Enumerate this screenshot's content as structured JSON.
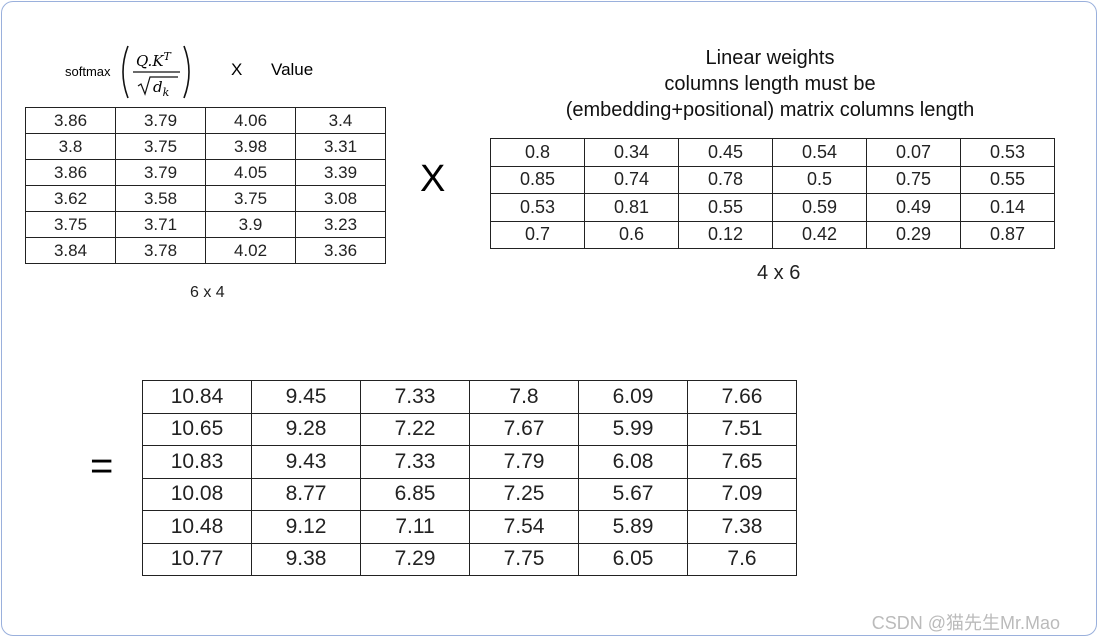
{
  "formula": {
    "function": "softmax",
    "numerator": "Q.K",
    "numerator_sup": "T",
    "denominator": "d",
    "denominator_sub": "k"
  },
  "left_operator": "X",
  "left_label": "Value",
  "left_table": {
    "rows": [
      [
        3.86,
        3.79,
        4.06,
        3.4
      ],
      [
        3.8,
        3.75,
        3.98,
        3.31
      ],
      [
        3.86,
        3.79,
        4.05,
        3.39
      ],
      [
        3.62,
        3.58,
        3.75,
        3.08
      ],
      [
        3.75,
        3.71,
        3.9,
        3.23
      ],
      [
        3.84,
        3.78,
        4.02,
        3.36
      ]
    ],
    "caption": "6 x 4"
  },
  "multiply_sign": "X",
  "right_title": [
    "Linear weights",
    "columns length must be",
    "(embedding+positional) matrix columns length"
  ],
  "right_table": {
    "rows": [
      [
        0.8,
        0.34,
        0.45,
        0.54,
        0.07,
        0.53
      ],
      [
        0.85,
        0.74,
        0.78,
        0.5,
        0.75,
        0.55
      ],
      [
        0.53,
        0.81,
        0.55,
        0.59,
        0.49,
        0.14
      ],
      [
        0.7,
        0.6,
        0.12,
        0.42,
        0.29,
        0.87
      ]
    ],
    "caption": "4 x 6"
  },
  "equals_sign": "=",
  "result_table": {
    "rows": [
      [
        10.84,
        9.45,
        7.33,
        7.8,
        6.09,
        7.66
      ],
      [
        10.65,
        9.28,
        7.22,
        7.67,
        5.99,
        7.51
      ],
      [
        10.83,
        9.43,
        7.33,
        7.79,
        6.08,
        7.65
      ],
      [
        10.08,
        8.77,
        6.85,
        7.25,
        5.67,
        7.09
      ],
      [
        10.48,
        9.12,
        7.11,
        7.54,
        5.89,
        7.38
      ],
      [
        10.77,
        9.38,
        7.29,
        7.75,
        6.05,
        7.6
      ]
    ]
  },
  "watermark": "CSDN @猫先生Mr.Mao"
}
